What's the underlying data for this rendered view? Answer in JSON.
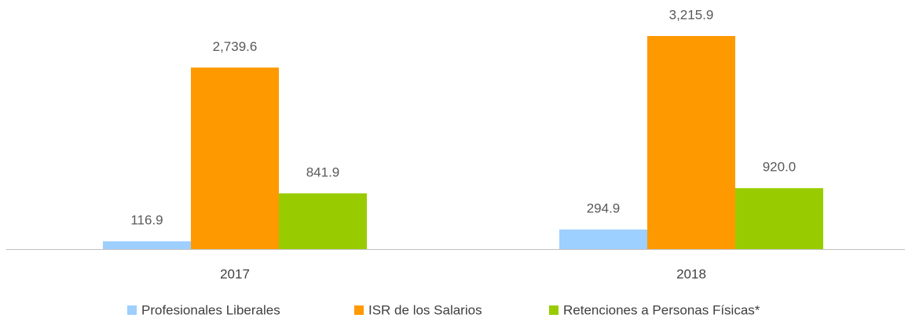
{
  "chart_data": {
    "type": "bar",
    "categories": [
      "2017",
      "2018"
    ],
    "series": [
      {
        "name": "Profesionales Liberales",
        "color": "#9dcfff",
        "values": [
          116.9,
          294.9
        ],
        "value_labels": [
          "116.9",
          "294.9"
        ]
      },
      {
        "name": "ISR de los Salarios",
        "color": "#ff9900",
        "values": [
          2739.6,
          3215.9
        ],
        "value_labels": [
          "2,739.6",
          "3,215.9"
        ]
      },
      {
        "name": "Retenciones a Personas Físicas*",
        "color": "#99cc00",
        "values": [
          841.9,
          920.0
        ],
        "value_labels": [
          "841.9",
          "920.0"
        ]
      }
    ]
  }
}
